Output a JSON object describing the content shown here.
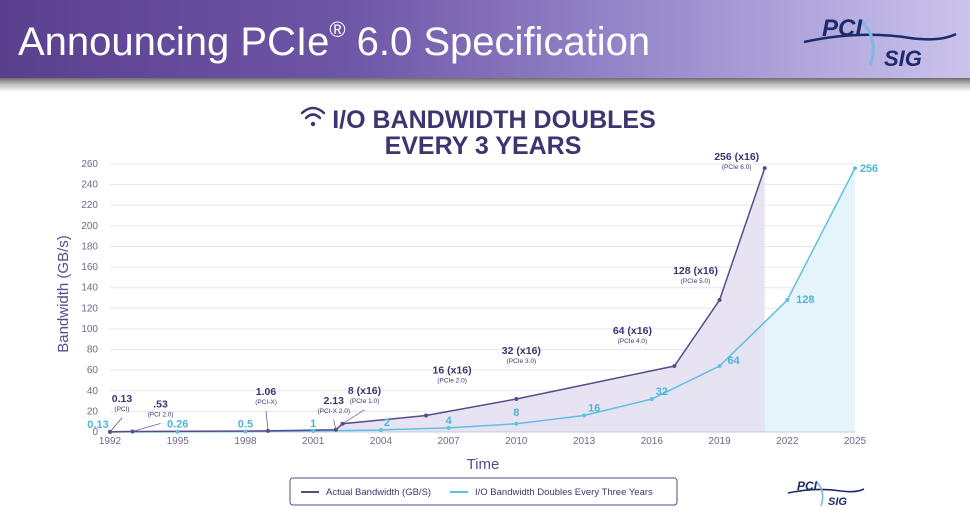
{
  "header": {
    "title_prefix": "Announcing PCIe",
    "registered_mark": "®",
    "title_suffix": " 6.0 Specification",
    "logo_top": "PCI",
    "logo_bottom": "SIG"
  },
  "footer_logo": {
    "top": "PCI",
    "bottom": "SIG"
  },
  "colors": {
    "banner_start": "#5b3f8f",
    "banner_end": "#cbc3ec",
    "actual": "#5a4a8a",
    "projected": "#5cc1e3",
    "title": "#3c3570",
    "axis_text": "#6a6a8a"
  },
  "chart_data": {
    "type": "line",
    "title_icon": "wifi-icon",
    "title_line1": "I/O BANDWIDTH DOUBLES",
    "title_line2": "EVERY 3 YEARS",
    "xlabel": "Time",
    "ylabel": "Bandwidth (GB/s)",
    "ylim": [
      0,
      260
    ],
    "yticks": [
      "0",
      "20",
      "40",
      "60",
      "80",
      "100",
      "120",
      "140",
      "160",
      "180",
      "200",
      "220",
      "240",
      "260"
    ],
    "xlim": [
      1992,
      2025
    ],
    "xticks": [
      "1992",
      "1995",
      "1998",
      "2001",
      "2004",
      "2007",
      "2010",
      "2013",
      "2016",
      "2019",
      "2022",
      "2025"
    ],
    "grid": true,
    "legend_position": "bottom",
    "series": [
      {
        "name": "Actual Bandwidth (GB/S)",
        "points": [
          {
            "x": 1992,
            "y": 0.13,
            "label": "0.13",
            "sub": "(PCI)"
          },
          {
            "x": 1993,
            "y": 0.53,
            "label": ".53",
            "sub": "(PCI 2.0)"
          },
          {
            "x": 1999,
            "y": 1.06,
            "label": "1.06",
            "sub": "(PCI-X)"
          },
          {
            "x": 2002,
            "y": 2.13,
            "label": "2.13",
            "sub": "(PCI-X 2.0)"
          },
          {
            "x": 2002.3,
            "y": 8,
            "label": "8 (x16)",
            "sub": "(PCIe 1.0)"
          },
          {
            "x": 2006,
            "y": 16,
            "label": "16 (x16)",
            "sub": "(PCIe 2.0)"
          },
          {
            "x": 2010,
            "y": 32,
            "label": "32 (x16)",
            "sub": "(PCIe 3.0)"
          },
          {
            "x": 2017,
            "y": 64,
            "label": "64 (x16)",
            "sub": "(PCIe 4.0)"
          },
          {
            "x": 2019,
            "y": 128,
            "label": "128 (x16)",
            "sub": "(PCIe 5.0)"
          },
          {
            "x": 2021,
            "y": 256,
            "label": "256 (x16)",
            "sub": "(PCIe 6.0)"
          }
        ]
      },
      {
        "name": "I/O Bandwidth Doubles Every Three Years",
        "points": [
          {
            "x": 1992,
            "y": 0.13,
            "label": "0.13"
          },
          {
            "x": 1995,
            "y": 0.26,
            "label": "0.26"
          },
          {
            "x": 1998,
            "y": 0.5,
            "label": "0.5"
          },
          {
            "x": 2001,
            "y": 1,
            "label": "1"
          },
          {
            "x": 2004,
            "y": 2,
            "label": "2"
          },
          {
            "x": 2007,
            "y": 4,
            "label": "4"
          },
          {
            "x": 2010,
            "y": 8,
            "label": "8"
          },
          {
            "x": 2013,
            "y": 16,
            "label": "16"
          },
          {
            "x": 2016,
            "y": 32,
            "label": "32"
          },
          {
            "x": 2019,
            "y": 64,
            "label": "64"
          },
          {
            "x": 2022,
            "y": 128,
            "label": "128"
          },
          {
            "x": 2025,
            "y": 256,
            "label": "256"
          }
        ]
      }
    ]
  }
}
